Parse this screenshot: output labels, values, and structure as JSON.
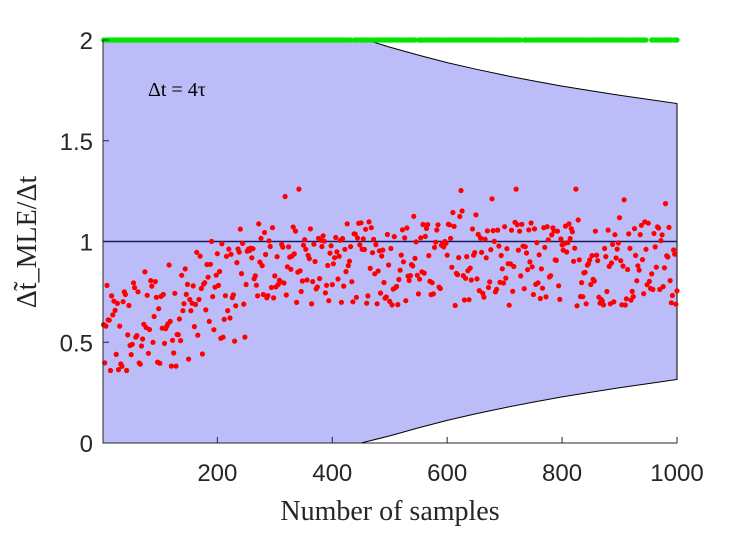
{
  "chart_data": {
    "type": "scatter",
    "xlabel": "Number of samples",
    "ylabel": "Δt̃_MLE/Δt",
    "annotation": "Δt = 4τ",
    "xlim": [
      1,
      1000
    ],
    "ylim": [
      0,
      2
    ],
    "x_ticks": [
      200,
      400,
      600,
      800,
      1000
    ],
    "y_ticks": [
      0,
      0.5,
      1,
      1.5,
      2
    ],
    "grid": false,
    "reference_line": 1,
    "band": {
      "color": "#bcbcf9",
      "upper": [
        [
          1,
          2.0
        ],
        [
          460,
          2.0
        ],
        [
          500,
          1.965
        ],
        [
          550,
          1.925
        ],
        [
          600,
          1.888
        ],
        [
          650,
          1.855
        ],
        [
          700,
          1.825
        ],
        [
          750,
          1.797
        ],
        [
          800,
          1.771
        ],
        [
          850,
          1.748
        ],
        [
          900,
          1.726
        ],
        [
          950,
          1.705
        ],
        [
          1000,
          1.685
        ]
      ],
      "lower": [
        [
          1,
          0.0
        ],
        [
          450,
          0.0
        ],
        [
          500,
          0.035
        ],
        [
          550,
          0.075
        ],
        [
          600,
          0.112
        ],
        [
          650,
          0.145
        ],
        [
          700,
          0.175
        ],
        [
          750,
          0.203
        ],
        [
          800,
          0.229
        ],
        [
          850,
          0.252
        ],
        [
          900,
          0.274
        ],
        [
          950,
          0.295
        ],
        [
          1000,
          0.315
        ]
      ]
    },
    "series": [
      {
        "color": "#ff0000",
        "kind": "mle_samples",
        "n": 500,
        "x_start": 2,
        "x_step": 2
      },
      {
        "color": "#00e600",
        "kind": "saturated",
        "y": 2,
        "n": 500,
        "x_start": 2,
        "x_step": 2
      }
    ]
  }
}
